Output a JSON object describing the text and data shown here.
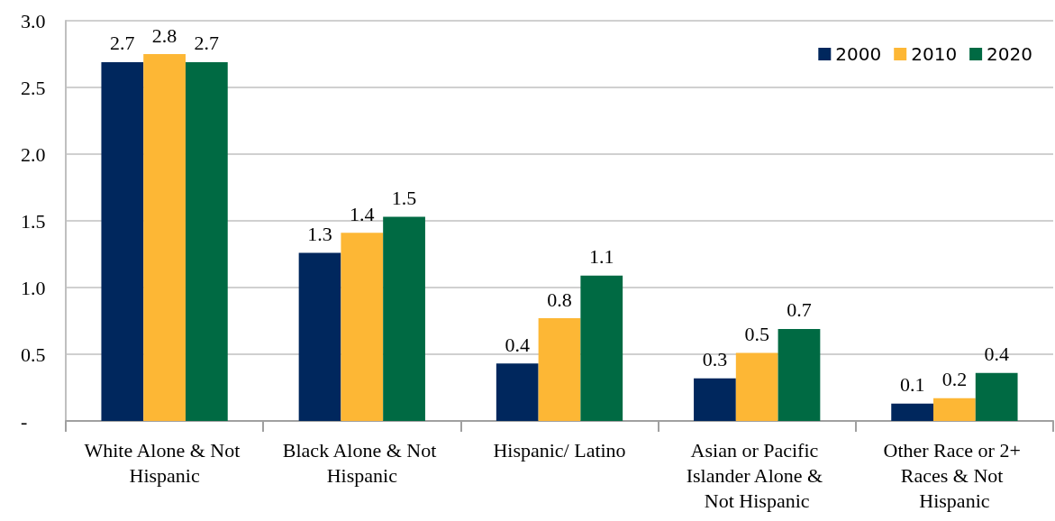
{
  "chart_data": {
    "type": "bar",
    "categories": [
      "White Alone & Not Hispanic",
      "Black Alone & Not Hispanic",
      "Hispanic/ Latino",
      "Asian or Pacific Islander Alone & Not Hispanic",
      "Other Race or 2+ Races & Not Hispanic"
    ],
    "series": [
      {
        "name": "2000",
        "color": "#00275d",
        "values": [
          2.69,
          1.26,
          0.43,
          0.32,
          0.13
        ],
        "value_labels": [
          "2.7",
          "1.3",
          "0.4",
          "0.3",
          "0.1"
        ]
      },
      {
        "name": "2010",
        "color": "#fdb735",
        "values": [
          2.75,
          1.41,
          0.77,
          0.51,
          0.17
        ],
        "value_labels": [
          "2.8",
          "1.4",
          "0.8",
          "0.5",
          "0.2"
        ]
      },
      {
        "name": "2020",
        "color": "#006a43",
        "values": [
          2.69,
          1.53,
          1.09,
          0.69,
          0.36
        ],
        "value_labels": [
          "2.7",
          "1.5",
          "1.1",
          "0.7",
          "0.4"
        ]
      }
    ],
    "ylim": [
      0,
      3.0
    ],
    "yticks": [
      {
        "value": 0,
        "label": "-"
      },
      0.5,
      {
        "value": 1,
        "label": "1.0"
      },
      1.5,
      {
        "value": 2,
        "label": "2.0"
      },
      2.5,
      {
        "value": 3,
        "label": "3.0"
      }
    ],
    "grid": true,
    "legend": "top right"
  }
}
